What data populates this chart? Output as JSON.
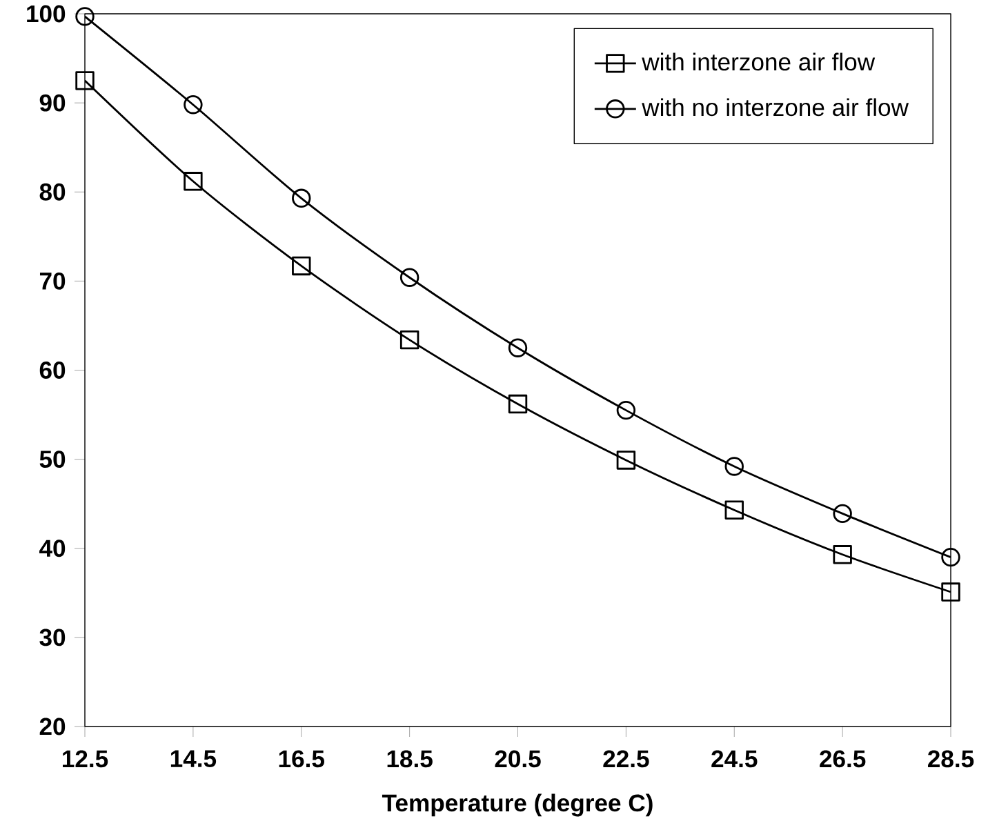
{
  "chart_data": {
    "type": "line",
    "xlabel": "Temperature (degree C)",
    "x": [
      12.5,
      14.5,
      16.5,
      18.5,
      20.5,
      22.5,
      24.5,
      26.5,
      28.5
    ],
    "series": [
      {
        "name": "with interzone air flow",
        "color": "#000000",
        "marker": "square",
        "values": [
          92.5,
          81.2,
          71.7,
          63.4,
          56.2,
          49.9,
          44.3,
          39.3,
          35.1
        ]
      },
      {
        "name": "with no interzone air flow",
        "color": "#000000",
        "marker": "circle",
        "values": [
          99.7,
          89.8,
          79.3,
          70.4,
          62.5,
          55.5,
          49.2,
          43.9,
          39.0
        ]
      }
    ],
    "xlim": [
      12.5,
      28.5
    ],
    "xticks": [
      12.5,
      14.5,
      16.5,
      18.5,
      20.5,
      22.5,
      24.5,
      26.5,
      28.5
    ],
    "ylim": [
      20,
      100
    ],
    "yticks": [
      20,
      30,
      40,
      50,
      60,
      70,
      80,
      90,
      100
    ],
    "line_style": "solid",
    "legend": "top right",
    "grid": false
  }
}
